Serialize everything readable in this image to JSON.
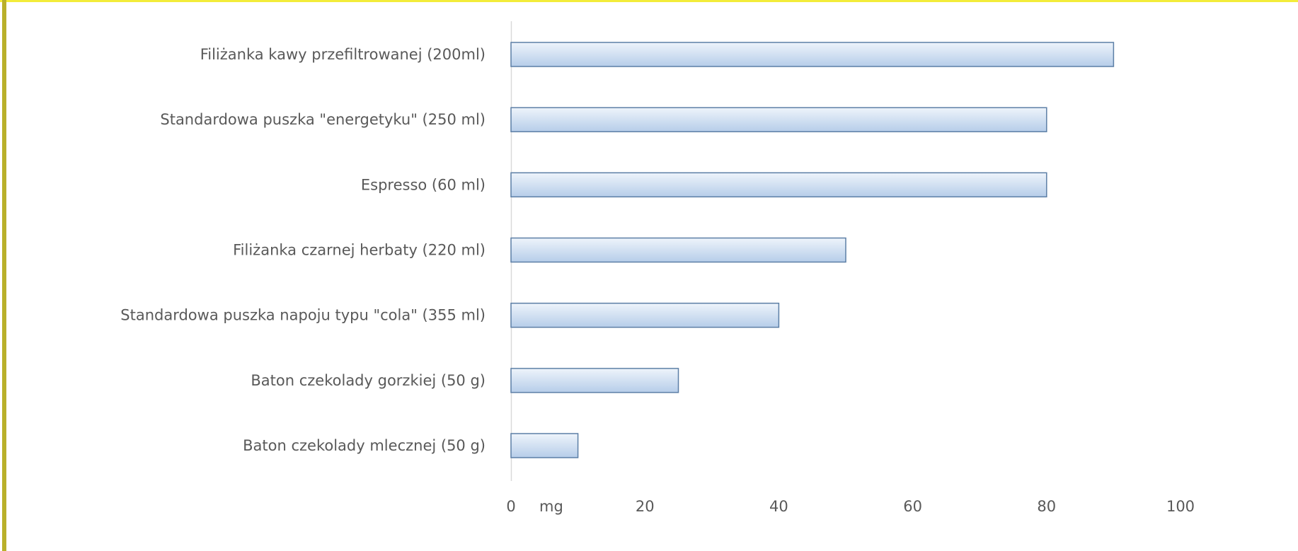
{
  "colors": {
    "frame_top": "#f3ec3a",
    "frame_left": "#b9b02a",
    "bar_fill_top": "#eef4fb",
    "bar_fill_bottom": "#b6cde9",
    "bar_stroke": "#5c7fa6",
    "axis": "#d9d9d9",
    "text": "#595959"
  },
  "chart_data": {
    "type": "bar",
    "orientation": "horizontal",
    "title": "",
    "xlabel": "",
    "ylabel": "",
    "unit_label": "mg",
    "xlim": [
      0,
      100
    ],
    "xticks": [
      0,
      20,
      40,
      60,
      80,
      100
    ],
    "grid": false,
    "legend": "none",
    "categories": [
      "Filiżanka kawy przefiltrowanej (200ml)",
      "Standardowa puszka \"energetyku\" (250 ml)",
      "Espresso (60 ml)",
      "Filiżanka czarnej herbaty (220 ml)",
      "Standardowa puszka napoju typu \"cola\" (355 ml)",
      "Baton czekolady gorzkiej (50 g)",
      "Baton czekolady mlecznej (50 g)"
    ],
    "values": [
      90,
      80,
      80,
      50,
      40,
      25,
      10
    ]
  }
}
